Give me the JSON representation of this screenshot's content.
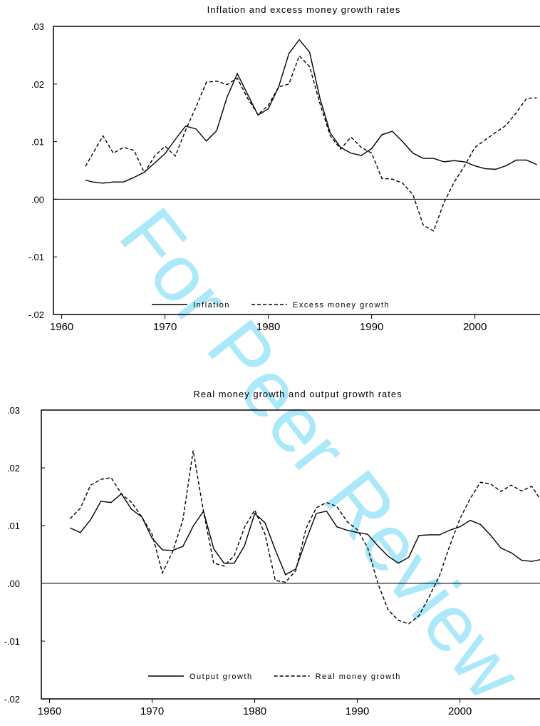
{
  "watermark": "For Peer Review",
  "chart_data": [
    {
      "type": "line",
      "title": "Inflation and excess money growth rates",
      "x": [
        1962.3,
        1963,
        1964,
        1965,
        1966,
        1967,
        1968,
        1969,
        1970,
        1971,
        1972,
        1973,
        1974,
        1975,
        1976,
        1977,
        1978,
        1979,
        1980,
        1981,
        1982,
        1983,
        1984,
        1985,
        1986,
        1987,
        1988,
        1989,
        1990,
        1991,
        1992,
        1993,
        1994,
        1995,
        1996,
        1997,
        1998,
        1999,
        2000,
        2001,
        2002,
        2003,
        2004,
        2005,
        2006
      ],
      "series": [
        {
          "name": "Inflation",
          "color": "#000000",
          "line_style": "solid",
          "values": [
            0.0033,
            0.003,
            0.0028,
            0.003,
            0.003,
            0.0038,
            0.0047,
            0.0063,
            0.0079,
            0.0104,
            0.0127,
            0.0122,
            0.0101,
            0.0119,
            0.0177,
            0.0218,
            0.0182,
            0.0146,
            0.0157,
            0.0195,
            0.0253,
            0.0277,
            0.0255,
            0.0175,
            0.0115,
            0.009,
            0.008,
            0.0076,
            0.0088,
            0.0112,
            0.0118,
            0.01,
            0.008,
            0.0071,
            0.0071,
            0.0065,
            0.0067,
            0.0065,
            0.0058,
            0.0053,
            0.0052,
            0.0058,
            0.0068,
            0.0068,
            0.006
          ]
        },
        {
          "name": "Excess money growth",
          "color": "#000000",
          "line_style": "dashed",
          "values": [
            0.0057,
            0.0079,
            0.011,
            0.008,
            0.009,
            0.0085,
            0.0046,
            0.0075,
            0.0092,
            0.0075,
            0.012,
            0.016,
            0.0203,
            0.0205,
            0.0199,
            0.021,
            0.0175,
            0.0147,
            0.0163,
            0.0195,
            0.02,
            0.0249,
            0.023,
            0.0166,
            0.011,
            0.0087,
            0.0108,
            0.009,
            0.008,
            0.0036,
            0.0035,
            0.0028,
            0.0008,
            -0.0045,
            -0.0055,
            -0.0006,
            0.003,
            0.0058,
            0.009,
            0.0103,
            0.0116,
            0.0128,
            0.015,
            0.0175,
            0.0176
          ]
        }
      ],
      "xlim": [
        1959.2,
        2006.3
      ],
      "xticks": [
        1960,
        1970,
        1980,
        1990,
        2000
      ],
      "ylim": [
        -0.02,
        0.03
      ],
      "yticks": [
        {
          "value": -0.02,
          "label": "-.02"
        },
        {
          "value": -0.01,
          "label": "-.01"
        },
        {
          "value": 0,
          "label": ".00"
        },
        {
          "value": 0.01,
          "label": ".01"
        },
        {
          "value": 0.02,
          "label": ".02"
        },
        {
          "value": 0.03,
          "label": ".03"
        }
      ],
      "zero_line": true,
      "grid": false,
      "legend": "bottom"
    },
    {
      "type": "line",
      "title": "Real money growth and output growth rates",
      "x": [
        1962,
        1963,
        1964,
        1965,
        1966,
        1967,
        1968,
        1969,
        1970,
        1971,
        1972,
        1973,
        1974,
        1975,
        1976,
        1977,
        1978,
        1979,
        1980,
        1981,
        1982,
        1983,
        1984,
        1985,
        1986,
        1987,
        1988,
        1989,
        1990,
        1991,
        1992,
        1993,
        1994,
        1995,
        1996,
        1997,
        1998,
        1999,
        2000,
        2001,
        2002,
        2003,
        2004,
        2005,
        2006,
        2007,
        2007.8
      ],
      "series": [
        {
          "name": "Output growth",
          "color": "#000000",
          "line_style": "solid",
          "values": [
            0.0096,
            0.0088,
            0.011,
            0.0142,
            0.014,
            0.0155,
            0.0128,
            0.0115,
            0.0078,
            0.0058,
            0.0057,
            0.0064,
            0.0099,
            0.0125,
            0.006,
            0.0035,
            0.0035,
            0.0065,
            0.0121,
            0.0105,
            0.0058,
            0.0015,
            0.0025,
            0.0075,
            0.0121,
            0.0125,
            0.0098,
            0.0092,
            0.0088,
            0.0085,
            0.0065,
            0.0047,
            0.0035,
            0.0045,
            0.0083,
            0.0084,
            0.0084,
            0.0092,
            0.0098,
            0.0109,
            0.0102,
            0.0083,
            0.0061,
            0.0053,
            0.004,
            0.0038,
            0.0041
          ]
        },
        {
          "name": "Real money growth",
          "color": "#000000",
          "line_style": "dashed",
          "values": [
            0.0112,
            0.013,
            0.017,
            0.018,
            0.0183,
            0.0155,
            0.014,
            0.0115,
            0.0085,
            0.0018,
            0.0055,
            0.011,
            0.023,
            0.0125,
            0.0035,
            0.003,
            0.0048,
            0.0097,
            0.0127,
            0.0085,
            0.0005,
            0.0002,
            0.0022,
            0.0095,
            0.0131,
            0.014,
            0.0133,
            0.0107,
            0.0093,
            0.0062,
            0.0,
            -0.0046,
            -0.0064,
            -0.007,
            -0.0056,
            -0.0023,
            0.0013,
            0.0065,
            0.0112,
            0.0147,
            0.0175,
            0.0172,
            0.0159,
            0.017,
            0.016,
            0.0168,
            0.0146
          ]
        }
      ],
      "xlim": [
        1959.2,
        2007.8
      ],
      "xticks": [
        1960,
        1970,
        1980,
        1990,
        2000
      ],
      "ylim": [
        -0.02,
        0.03
      ],
      "yticks": [
        {
          "value": -0.02,
          "label": "-.02"
        },
        {
          "value": -0.01,
          "label": "-.01"
        },
        {
          "value": 0,
          "label": ".00"
        },
        {
          "value": 0.01,
          "label": ".01"
        },
        {
          "value": 0.02,
          "label": ".02"
        },
        {
          "value": 0.03,
          "label": ".03"
        }
      ],
      "zero_line": true,
      "grid": false,
      "legend": "bottom"
    }
  ]
}
